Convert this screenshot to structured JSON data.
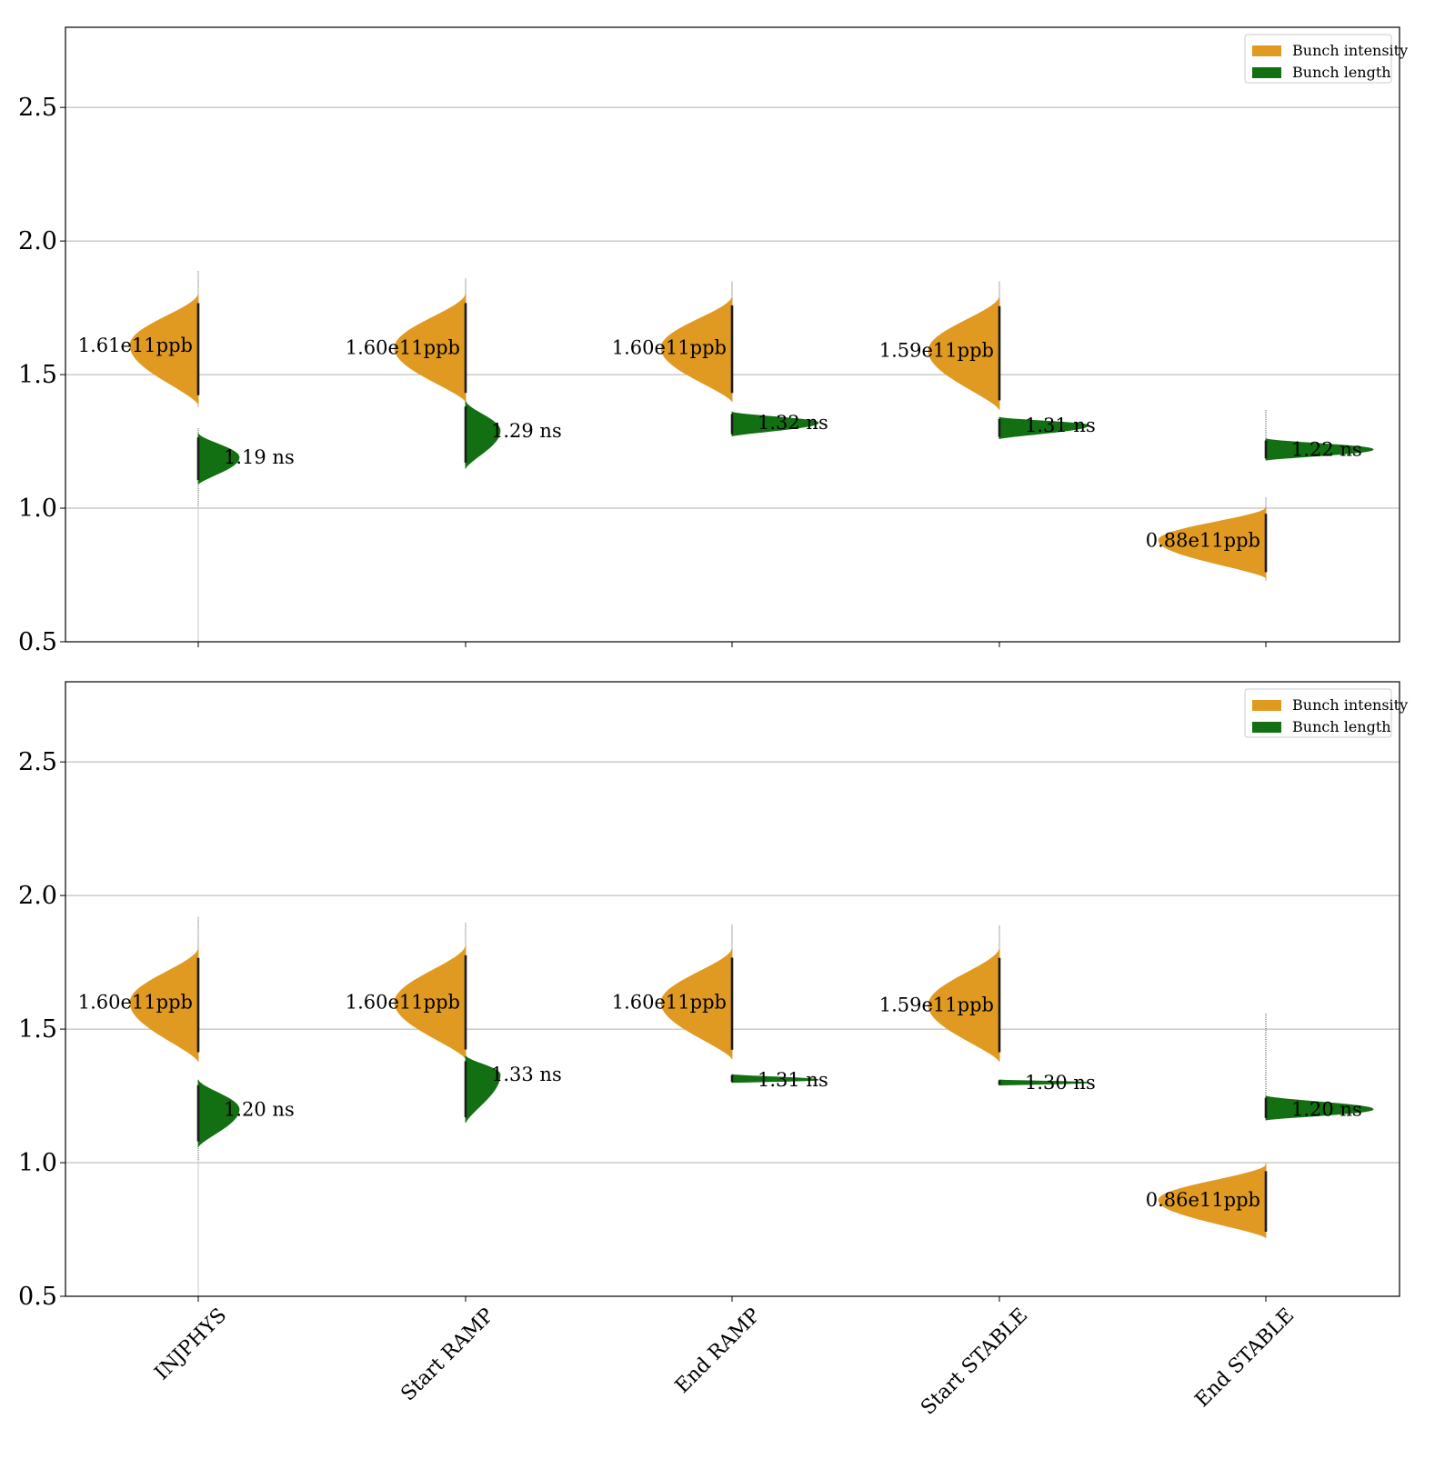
{
  "chart_data": [
    {
      "type": "violin",
      "ylim": [
        0.5,
        2.8
      ],
      "yticks": [
        0.5,
        1.0,
        1.5,
        2.0,
        2.5
      ],
      "grid": "horizontal",
      "legend_placement": "upper right",
      "legend": [
        "Bunch intensity",
        "Bunch length"
      ],
      "colors": {
        "Bunch intensity": "#E09A22",
        "Bunch length": "#127012"
      },
      "categories": [
        "INJPHYS",
        "Start RAMP",
        "End RAMP",
        "Start STABLE",
        "End STABLE"
      ],
      "series": [
        {
          "name": "Bunch intensity",
          "side": "left",
          "median": [
            1.61,
            1.6,
            1.6,
            1.59,
            0.88
          ],
          "body_range": [
            [
              1.39,
              1.8
            ],
            [
              1.4,
              1.8
            ],
            [
              1.4,
              1.79
            ],
            [
              1.37,
              1.79
            ],
            [
              0.74,
              1.0
            ]
          ],
          "whisker_range": [
            [
              1.38,
              1.89
            ],
            [
              1.4,
              1.86
            ],
            [
              1.4,
              1.85
            ],
            [
              1.4,
              1.85
            ],
            [
              0.73,
              1.04
            ]
          ],
          "labels": [
            "1.61e11ppb",
            "1.60e11ppb",
            "1.60e11ppb",
            "1.59e11ppb",
            "0.88e11ppb"
          ]
        },
        {
          "name": "Bunch length",
          "side": "right",
          "median": [
            1.19,
            1.29,
            1.32,
            1.31,
            1.22
          ],
          "body_range": [
            [
              1.09,
              1.28
            ],
            [
              1.15,
              1.4
            ],
            [
              1.27,
              1.36
            ],
            [
              1.26,
              1.34
            ],
            [
              1.18,
              1.26
            ]
          ],
          "whisker_range": [
            [
              1.01,
              1.3
            ],
            [
              1.15,
              1.4
            ],
            [
              1.27,
              1.36
            ],
            [
              1.26,
              1.34
            ],
            [
              1.18,
              1.37
            ]
          ],
          "labels": [
            "1.19 ns",
            "1.29 ns",
            "1.32 ns",
            "1.31 ns",
            "1.22 ns"
          ]
        }
      ]
    },
    {
      "type": "violin",
      "ylim": [
        0.5,
        2.8
      ],
      "yticks": [
        0.5,
        1.0,
        1.5,
        2.0,
        2.5
      ],
      "grid": "horizontal",
      "legend_placement": "upper right",
      "legend": [
        "Bunch intensity",
        "Bunch length"
      ],
      "colors": {
        "Bunch intensity": "#E09A22",
        "Bunch length": "#127012"
      },
      "categories": [
        "INJPHYS",
        "Start RAMP",
        "End RAMP",
        "Start STABLE",
        "End STABLE"
      ],
      "xticklabels": [
        "INJPHYS",
        "Start RAMP",
        "End RAMP",
        "Start STABLE",
        "End STABLE"
      ],
      "series": [
        {
          "name": "Bunch intensity",
          "side": "left",
          "median": [
            1.6,
            1.6,
            1.6,
            1.59,
            0.86
          ],
          "body_range": [
            [
              1.38,
              1.8
            ],
            [
              1.39,
              1.81
            ],
            [
              1.39,
              1.8
            ],
            [
              1.38,
              1.8
            ],
            [
              0.72,
              0.99
            ]
          ],
          "whisker_range": [
            [
              1.38,
              1.92
            ],
            [
              1.39,
              1.9
            ],
            [
              1.39,
              1.89
            ],
            [
              1.38,
              1.89
            ],
            [
              0.72,
              1.0
            ]
          ],
          "labels": [
            "1.60e11ppb",
            "1.60e11ppb",
            "1.60e11ppb",
            "1.59e11ppb",
            "0.86e11ppb"
          ]
        },
        {
          "name": "Bunch length",
          "side": "right",
          "median": [
            1.2,
            1.33,
            1.31,
            1.3,
            1.2
          ],
          "body_range": [
            [
              1.06,
              1.31
            ],
            [
              1.15,
              1.4
            ],
            [
              1.3,
              1.33
            ],
            [
              1.29,
              1.31
            ],
            [
              1.16,
              1.25
            ]
          ],
          "whisker_range": [
            [
              1.01,
              1.31
            ],
            [
              1.15,
              1.4
            ],
            [
              1.3,
              1.33
            ],
            [
              1.29,
              1.31
            ],
            [
              1.16,
              1.56
            ]
          ],
          "labels": [
            "1.20 ns",
            "1.33 ns",
            "1.31 ns",
            "1.30 ns",
            "1.20 ns"
          ]
        }
      ]
    }
  ]
}
